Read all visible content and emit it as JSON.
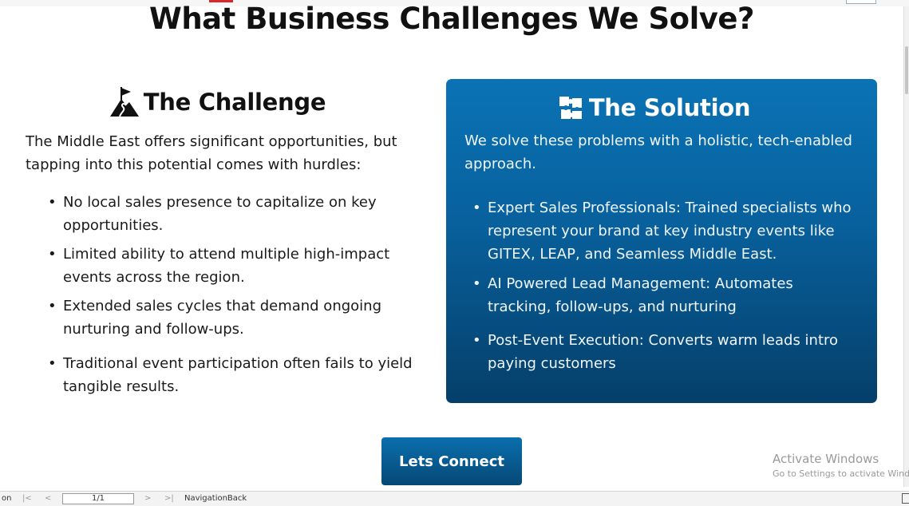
{
  "page": {
    "title": "What Business Challenges We Solve?"
  },
  "challenge": {
    "heading": "The Challenge",
    "icon": "mountain-flag-icon",
    "intro": "The Middle East offers significant opportunities, but tapping into this potential comes with hurdles:",
    "items": [
      "No local sales presence to capitalize on key opportunities.",
      "Limited ability to attend multiple high-impact events across the region.",
      "Extended sales cycles that demand ongoing nurturing and follow-ups.",
      "Traditional event participation often fails to yield tangible results."
    ]
  },
  "solution": {
    "heading": "The Solution",
    "icon": "puzzle-pieces-icon",
    "intro": "We solve these problems with a holistic, tech-enabled approach.",
    "items": [
      "Expert Sales Professionals: Trained specialists who represent your brand at key industry events like GITEX, LEAP, and Seamless Middle East.",
      "AI Powered Lead Management: Automates tracking, follow-ups, and nurturing",
      "Post-Event Execution: Converts warm leads intro paying customers"
    ],
    "colors": {
      "top": "#0a73b5",
      "bottom": "#053f6a"
    }
  },
  "cta": {
    "label": "Lets Connect"
  },
  "watermark": {
    "line1": "Activate Windows",
    "line2": "Go to Settings to activate Windo"
  },
  "statusbar": {
    "left_text": "on",
    "first_icon": "first-page-icon",
    "prev_icon": "previous-page-icon",
    "page_value": "1/1",
    "next_icon": "next-page-icon",
    "last_icon": "last-page-icon",
    "nav_text": "NavigationBack"
  }
}
